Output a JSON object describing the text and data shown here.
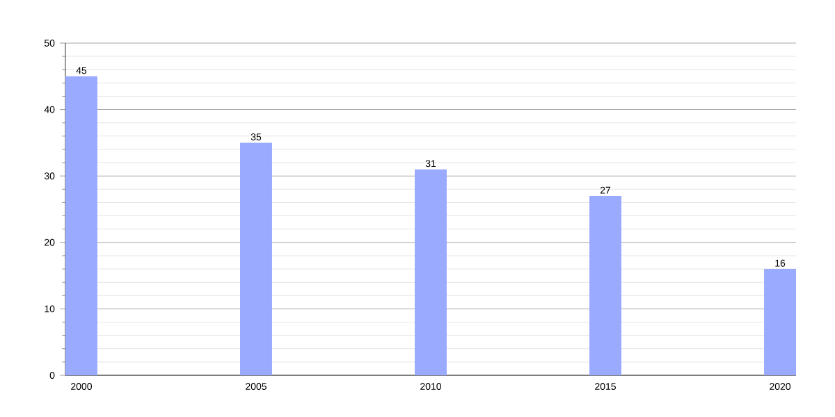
{
  "chart_data": {
    "type": "bar",
    "categories": [
      "2000",
      "2005",
      "2010",
      "2015",
      "2020"
    ],
    "values": [
      45,
      35,
      31,
      27,
      16
    ],
    "color": "#99aaff",
    "ylim": [
      0,
      50
    ],
    "yticks": [
      0,
      10,
      20,
      30,
      40,
      50
    ],
    "grid": "y",
    "data_labels": true
  }
}
